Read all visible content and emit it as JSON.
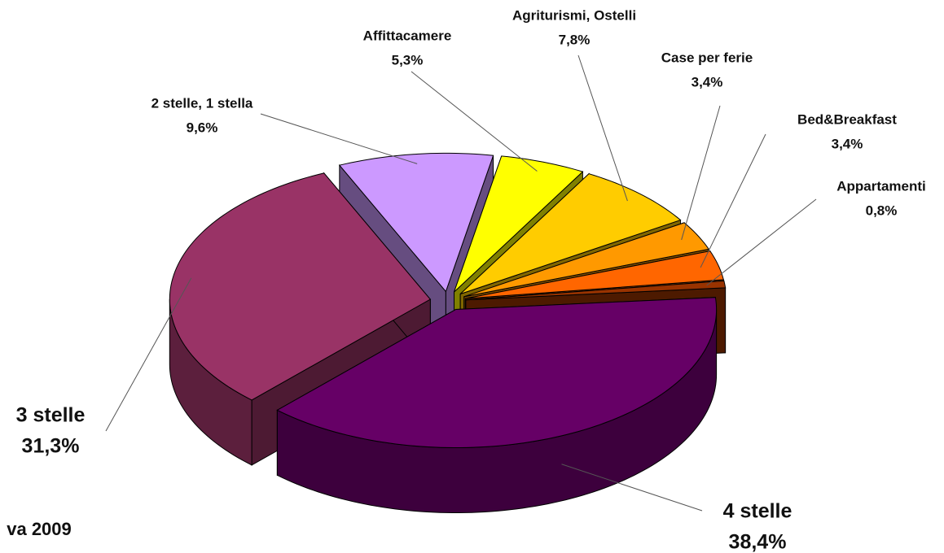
{
  "chart_data": {
    "type": "pie3d",
    "categories": [
      "4 stelle",
      "3 stelle",
      "2 stelle, 1 stella",
      "Affittacamere",
      "Agriturismi, Ostelli",
      "Case per ferie",
      "Bed&Breakfast",
      "Appartamenti"
    ],
    "values": [
      38.4,
      31.3,
      9.6,
      5.3,
      7.8,
      3.4,
      3.4,
      0.8
    ],
    "value_labels": [
      "38,4%",
      "31,3%",
      "9,6%",
      "5,3%",
      "7,8%",
      "3,4%",
      "3,4%",
      "0,8%"
    ],
    "colors": [
      "#660066",
      "#993366",
      "#cc99ff",
      "#ffff00",
      "#ffcc00",
      "#ff9900",
      "#ff6600",
      "#993300"
    ],
    "annotations": [
      "va 2009"
    ]
  }
}
